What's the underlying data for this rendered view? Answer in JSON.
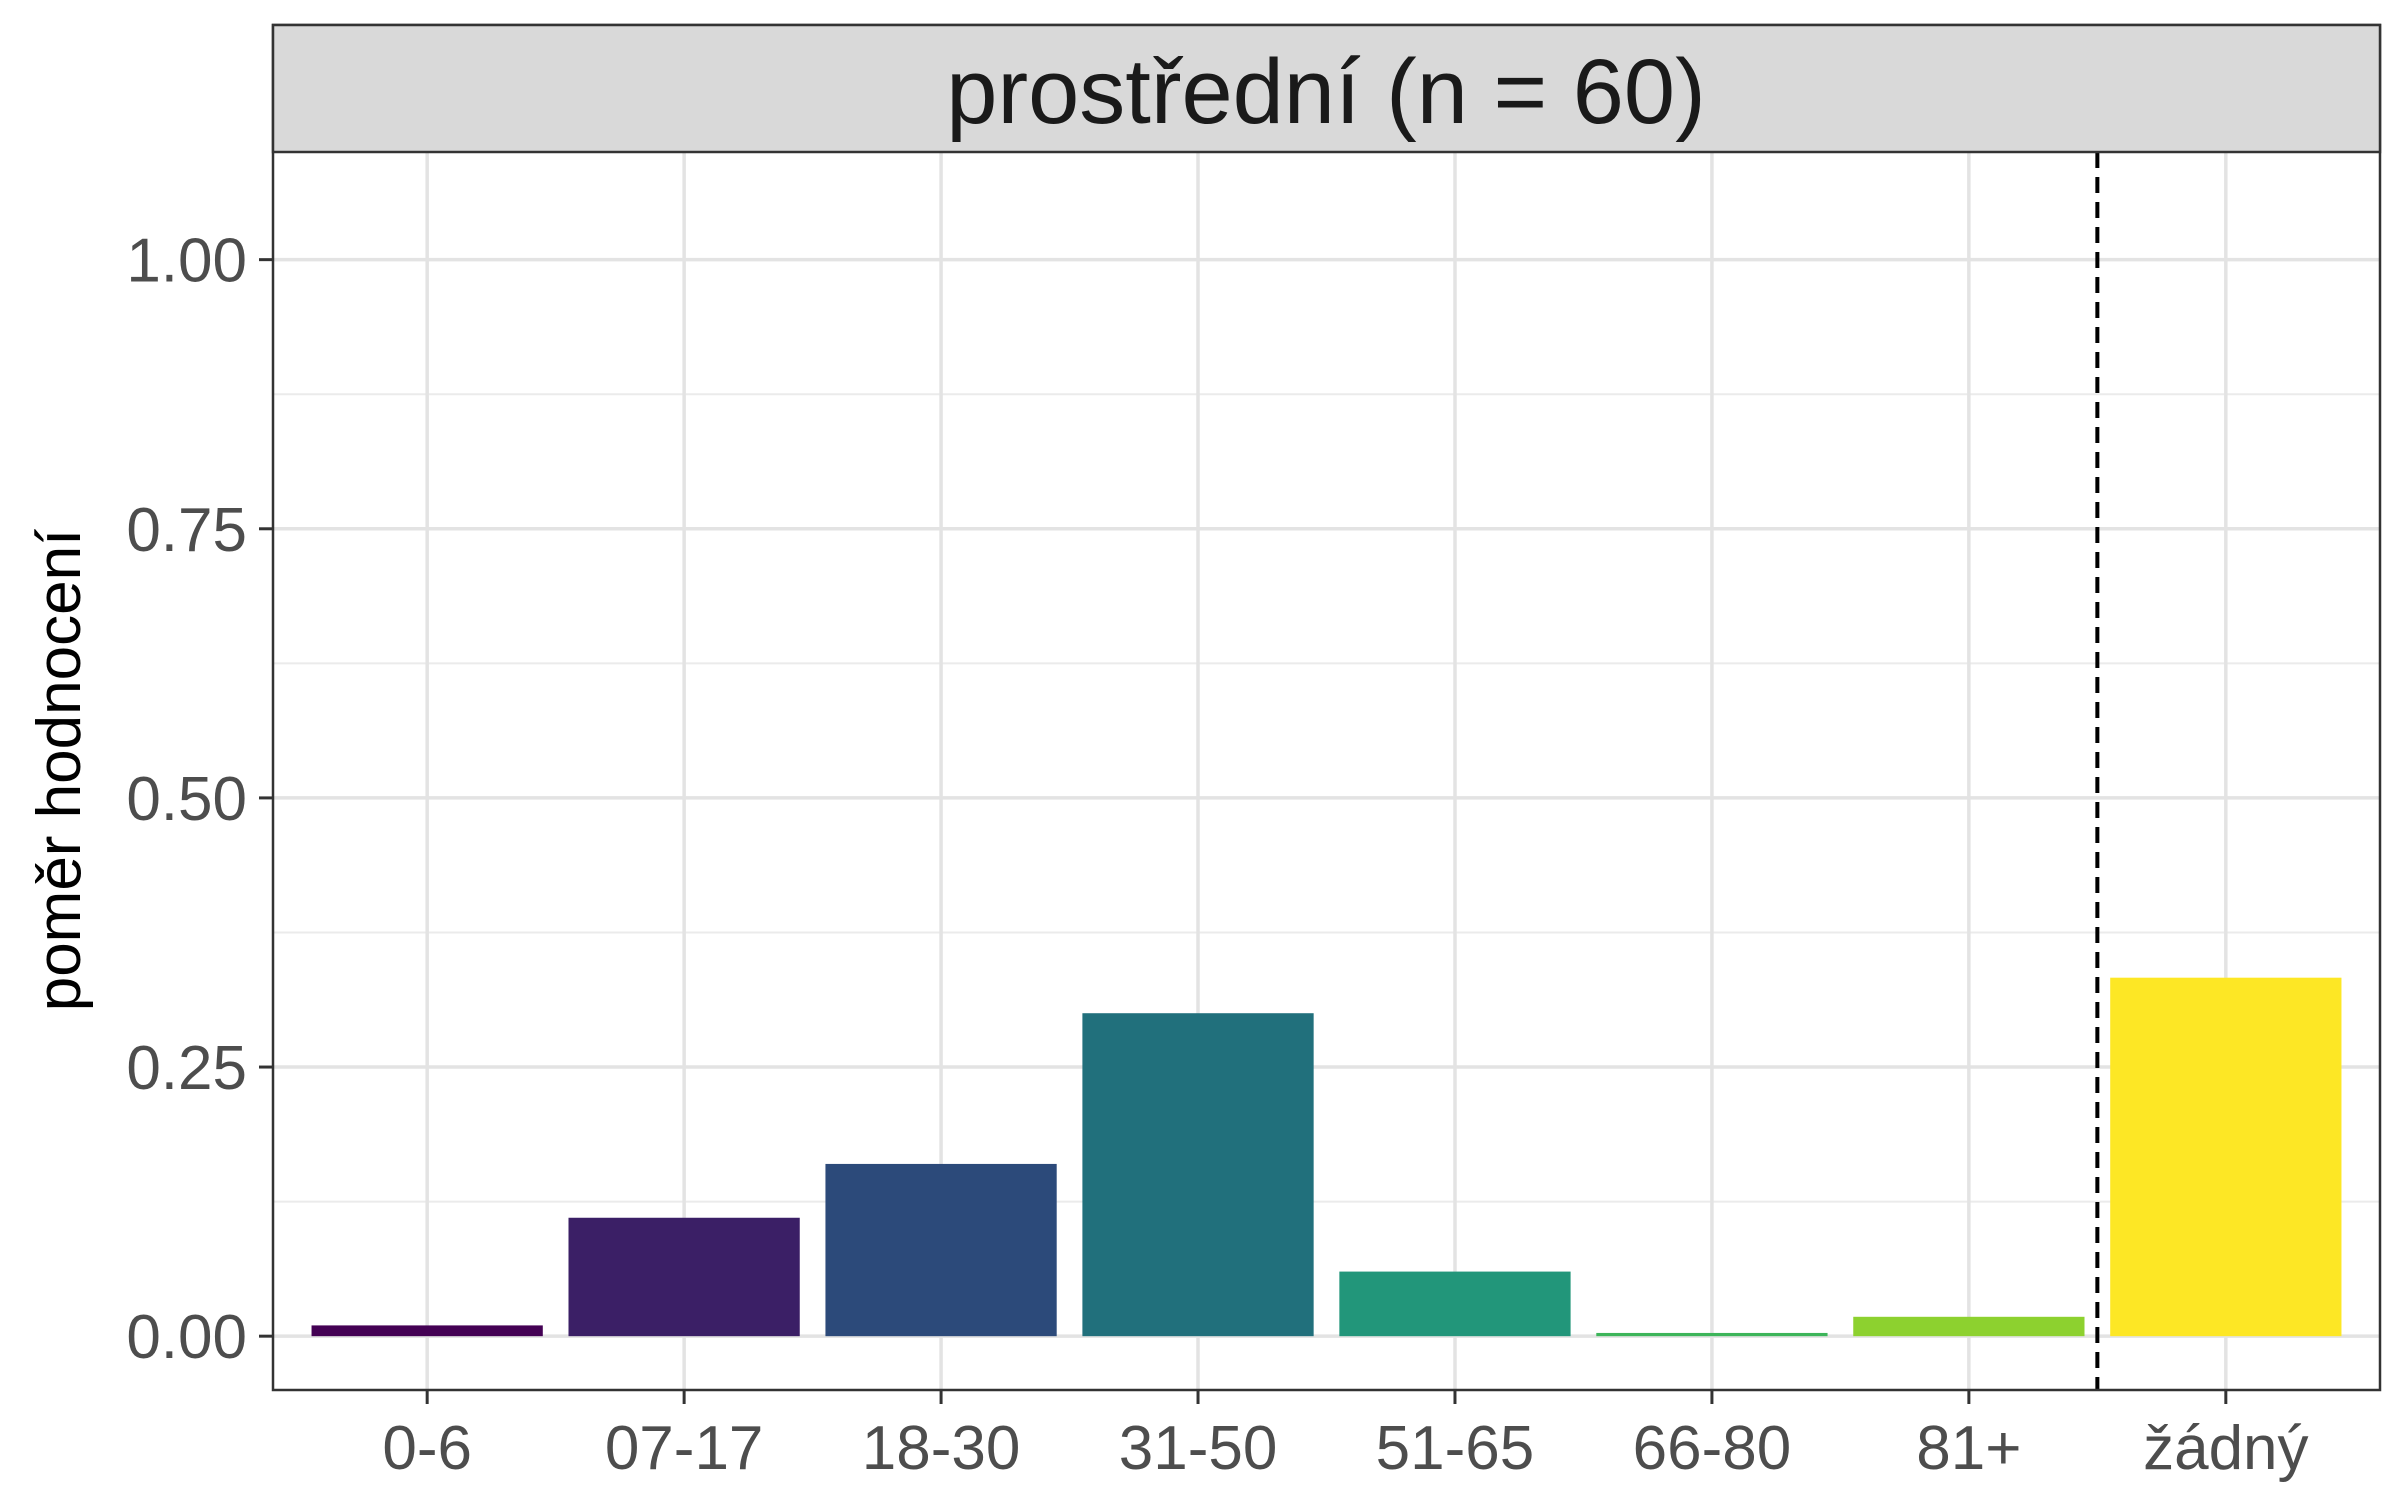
{
  "chart_data": {
    "type": "bar",
    "facet_title": "prostřední (n = 60)",
    "ylabel": "poměr hodnocení",
    "xlabel": "",
    "categories": [
      "0-6",
      "07-17",
      "18-30",
      "31-50",
      "51-65",
      "66-80",
      "81+",
      "žádný"
    ],
    "values": [
      0.01,
      0.11,
      0.16,
      0.3,
      0.06,
      0.003,
      0.018,
      0.333
    ],
    "colors": [
      "#440154",
      "#3B1F66",
      "#2C4A7A",
      "#21707C",
      "#22967A",
      "#3DB55A",
      "#8DD12F",
      "#FDE725"
    ],
    "ylim": [
      -0.05,
      1.1
    ],
    "yticks": [
      0.0,
      0.25,
      0.5,
      0.75,
      1.0
    ],
    "ytick_labels": [
      "0.00",
      "0.25",
      "0.50",
      "0.75",
      "1.00"
    ],
    "separator": "dashed vertical line between 81+ and žádný",
    "grid": true,
    "legend": "none"
  }
}
